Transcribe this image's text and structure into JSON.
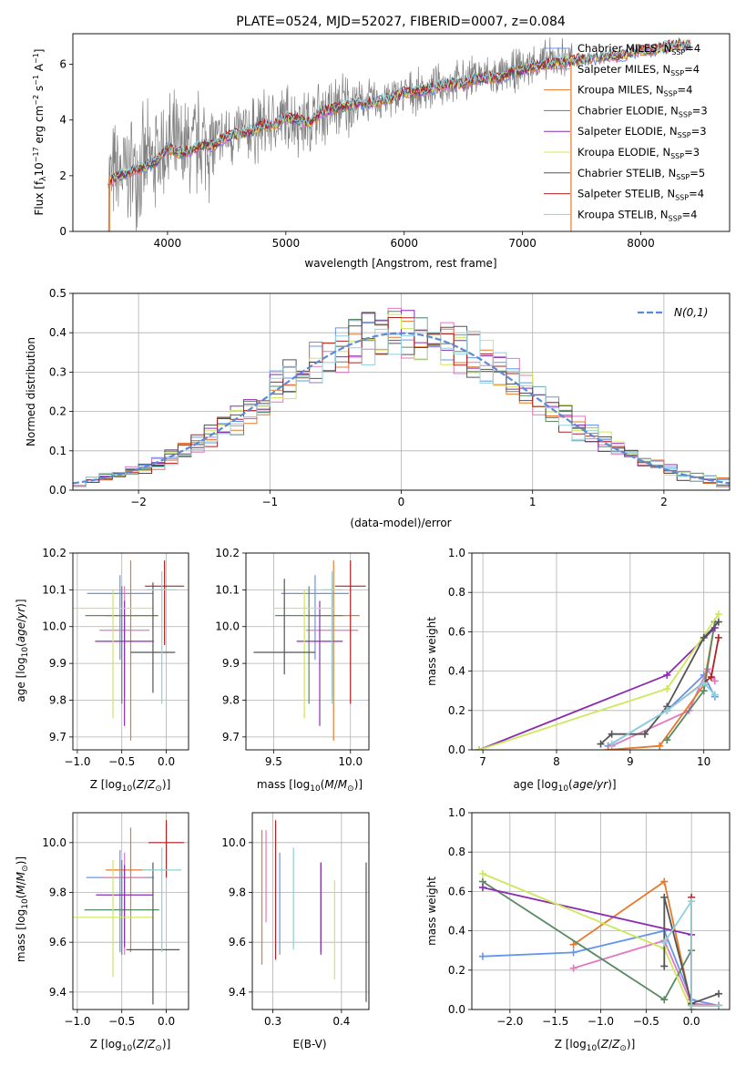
{
  "colors": {
    "Chabrier MILES": "#6495ed",
    "Salpeter MILES": "#e377c2",
    "Kroupa MILES": "#e8792a",
    "Chabrier ELODIE": "#5a8a64",
    "Salpeter ELODIE": "#8b2bb2",
    "Kroupa ELODIE": "#cde85a",
    "Chabrier STELIB": "#555555",
    "Salpeter STELIB": "#b22222",
    "Kroupa STELIB": "#8fd0db",
    "data": "#808080",
    "gauss": "#5b8bd6"
  },
  "chart_data": [
    {
      "id": "spectrum",
      "type": "line",
      "title": "PLATE=0524, MJD=52027, FIBERID=0007, z=0.084",
      "xlabel": "wavelength [Angstrom, rest frame]",
      "ylabel": "Flux [f",
      "xlim": [
        3200,
        8750
      ],
      "ylim": [
        0,
        7.1
      ],
      "xticks": [
        4000,
        5000,
        6000,
        7000,
        8000
      ],
      "yticks": [
        0,
        2,
        4,
        6
      ],
      "legend_position": "upper right",
      "legend": [
        "Chabrier MILES, N",
        "Salpeter MILES, N",
        "Kroupa MILES, N",
        "Chabrier ELODIE, N",
        "Salpeter ELODIE, N",
        "Kroupa ELODIE, N",
        "Chabrier STELIB, N",
        "Salpeter STELIB, N",
        "Kroupa STELIB, N"
      ],
      "legend_nssp": [
        "=4",
        "=4",
        "=4",
        "=3",
        "=3",
        "=3",
        "=5",
        "=4",
        "=4"
      ],
      "data_series": {
        "name": "data",
        "x": [
          3500,
          3600,
          3700,
          3800,
          3900,
          4000,
          4100,
          4200,
          4300,
          4400,
          4500,
          4600,
          4700,
          4800,
          4900,
          5000,
          5100,
          5200,
          5300,
          5400,
          5500,
          5600,
          5700,
          5800,
          5900,
          6000,
          6100,
          6200,
          6300,
          6400,
          6500,
          6600,
          6700,
          6800,
          6900,
          7000,
          7100,
          7200,
          7300,
          7400
        ],
        "y": [
          1.9,
          2.0,
          2.2,
          2.4,
          2.6,
          3.1,
          2.8,
          3.0,
          3.2,
          3.1,
          3.4,
          3.5,
          3.6,
          3.8,
          3.9,
          4.1,
          4.0,
          3.9,
          4.3,
          4.4,
          4.6,
          4.6,
          4.7,
          4.7,
          4.8,
          5.0,
          5.0,
          5.1,
          5.2,
          5.3,
          5.4,
          5.6,
          5.6,
          5.5,
          5.7,
          5.9,
          6.0,
          6.1,
          6.2,
          6.2
        ]
      },
      "model_series": {
        "name": "models",
        "x": [
          3500,
          3600,
          3700,
          3800,
          3900,
          4000,
          4100,
          4200,
          4300,
          4400,
          4500,
          4600,
          4700,
          4800,
          4900,
          5000,
          5100,
          5200,
          5300,
          5400,
          5500,
          5600,
          5700,
          5800,
          5900,
          6000,
          6100,
          6200,
          6300,
          6400,
          6500,
          6600,
          6700,
          6800,
          6900,
          7000,
          7100,
          7200,
          7300,
          7400,
          7500,
          7600,
          7700,
          7800,
          7900,
          8000,
          8100,
          8200,
          8300,
          8400
        ],
        "y": [
          1.8,
          2.0,
          2.2,
          2.3,
          2.5,
          3.0,
          2.8,
          2.9,
          3.1,
          3.1,
          3.4,
          3.5,
          3.6,
          3.8,
          3.8,
          4.1,
          4.0,
          3.9,
          4.3,
          4.4,
          4.5,
          4.6,
          4.6,
          4.7,
          4.8,
          5.0,
          5.0,
          5.1,
          5.2,
          5.3,
          5.3,
          5.5,
          5.5,
          5.5,
          5.7,
          5.8,
          5.9,
          6.0,
          6.1,
          6.1,
          6.2,
          6.2,
          6.3,
          6.3,
          6.4,
          6.5,
          6.5,
          6.6,
          6.7,
          6.7
        ]
      }
    },
    {
      "id": "residuals",
      "type": "histogram",
      "xlabel": "(data-model)/error",
      "ylabel": "Normed distribution",
      "xlim": [
        -2.5,
        2.5
      ],
      "ylim": [
        0,
        0.5
      ],
      "xticks": [
        -2,
        -1,
        0,
        1,
        2
      ],
      "yticks": [
        0.0,
        0.1,
        0.2,
        0.3,
        0.4,
        0.5
      ],
      "legend": [
        "N(0,1)"
      ],
      "legend_position": "upper right",
      "bin_width": 0.1,
      "hist_peak": [
        0.47,
        0.46,
        0.44,
        0.42,
        0.41,
        0.4,
        0.39,
        0.38,
        0.37,
        0.36
      ]
    },
    {
      "id": "age_vs_Z",
      "type": "errorbar",
      "xlabel": "Z [log",
      "ylabel": "age  [log",
      "xlim": [
        -1.05,
        0.25
      ],
      "ylim": [
        9.665,
        10.2
      ],
      "xticks": [
        -1.0,
        -0.5,
        0.0
      ],
      "yticks": [
        9.7,
        9.8,
        9.9,
        10.0,
        10.1,
        10.2
      ],
      "points": [
        {
          "model": "Chabrier MILES",
          "x": -0.52,
          "y": 10.09,
          "xerr": 0.37,
          "yerr": [
            0.18,
            0.05
          ]
        },
        {
          "model": "Salpeter MILES",
          "x": -0.47,
          "y": 9.99,
          "xerr": 0.28,
          "yerr": [
            0.18,
            0.12
          ]
        },
        {
          "model": "Kroupa MILES",
          "x": -0.4,
          "y": 10.03,
          "xerr": 0.29,
          "yerr": [
            0.34,
            0.15
          ]
        },
        {
          "model": "Chabrier ELODIE",
          "x": -0.5,
          "y": 10.03,
          "xerr": 0.41,
          "yerr": [
            0.24,
            0.08
          ]
        },
        {
          "model": "Salpeter ELODIE",
          "x": -0.47,
          "y": 9.96,
          "xerr": 0.33,
          "yerr": [
            0.23,
            0.11
          ]
        },
        {
          "model": "Kroupa ELODIE",
          "x": -0.6,
          "y": 10.05,
          "xerr": 0.46,
          "yerr": [
            0.3,
            0.05
          ]
        },
        {
          "model": "Chabrier STELIB",
          "x": -0.15,
          "y": 9.93,
          "xerr": 0.25,
          "yerr": [
            0.11,
            0.19
          ]
        },
        {
          "model": "Salpeter STELIB",
          "x": -0.02,
          "y": 10.11,
          "xerr": 0.22,
          "yerr": [
            0.16,
            0.07
          ]
        },
        {
          "model": "Kroupa STELIB",
          "x": -0.05,
          "y": 10.1,
          "xerr": 0.17,
          "yerr": [
            0.31,
            0.05
          ]
        }
      ]
    },
    {
      "id": "age_vs_mass",
      "type": "errorbar",
      "xlabel": "mass [log",
      "ylabel": "",
      "xlim": [
        9.32,
        10.12
      ],
      "ylim": [
        9.665,
        10.2
      ],
      "xticks": [
        9.5,
        10.0
      ],
      "yticks": [
        9.7,
        9.8,
        9.9,
        10.0,
        10.1,
        10.2
      ],
      "points": [
        {
          "model": "Chabrier MILES",
          "x": 9.77,
          "y": 10.09,
          "xerr": 0.22,
          "yerr": [
            0.18,
            0.05
          ]
        },
        {
          "model": "Salpeter MILES",
          "x": 9.88,
          "y": 9.99,
          "xerr": 0.17,
          "yerr": [
            0.18,
            0.12
          ]
        },
        {
          "model": "Kroupa MILES",
          "x": 9.89,
          "y": 10.03,
          "xerr": 0.17,
          "yerr": [
            0.34,
            0.15
          ]
        },
        {
          "model": "Chabrier ELODIE",
          "x": 9.73,
          "y": 10.03,
          "xerr": 0.22,
          "yerr": [
            0.24,
            0.08
          ]
        },
        {
          "model": "Salpeter ELODIE",
          "x": 9.8,
          "y": 9.96,
          "xerr": 0.15,
          "yerr": [
            0.23,
            0.11
          ]
        },
        {
          "model": "Kroupa ELODIE",
          "x": 9.7,
          "y": 10.05,
          "xerr": 0.2,
          "yerr": [
            0.3,
            0.05
          ]
        },
        {
          "model": "Chabrier STELIB",
          "x": 9.57,
          "y": 9.93,
          "xerr": 0.2,
          "yerr": [
            0.06,
            0.2
          ]
        },
        {
          "model": "Salpeter STELIB",
          "x": 10.0,
          "y": 10.11,
          "xerr": 0.1,
          "yerr": [
            0.32,
            0.07
          ]
        },
        {
          "model": "Kroupa STELIB",
          "x": 9.88,
          "y": 10.1,
          "xerr": 0.07,
          "yerr": [
            0.31,
            0.05
          ]
        }
      ]
    },
    {
      "id": "weight_vs_age",
      "type": "line",
      "xlabel": "age  [log",
      "ylabel": "mass weight",
      "xlim": [
        6.85,
        10.35
      ],
      "ylim": [
        0,
        1.0
      ],
      "xticks": [
        7,
        8,
        9,
        10
      ],
      "yticks": [
        0.0,
        0.2,
        0.4,
        0.6,
        0.8,
        1.0
      ],
      "series": [
        {
          "model": "Chabrier MILES",
          "x": [
            8.7,
            9.5,
            10.0,
            10.15
          ],
          "y": [
            0.02,
            0.2,
            0.38,
            0.27
          ]
        },
        {
          "model": "Salpeter MILES",
          "x": [
            8.75,
            9.8,
            10.05,
            10.15
          ],
          "y": [
            0.02,
            0.2,
            0.41,
            0.35
          ]
        },
        {
          "model": "Kroupa MILES",
          "x": [
            8.7,
            9.4,
            10.0,
            10.15
          ],
          "y": [
            0.0,
            0.02,
            0.33,
            0.65
          ]
        },
        {
          "model": "Chabrier ELODIE",
          "x": [
            9.5,
            10.0,
            10.15
          ],
          "y": [
            0.05,
            0.3,
            0.65
          ]
        },
        {
          "model": "Salpeter ELODIE",
          "x": [
            6.95,
            9.5,
            10.15
          ],
          "y": [
            0.0,
            0.38,
            0.62
          ]
        },
        {
          "model": "Kroupa ELODIE",
          "x": [
            6.95,
            9.5,
            10.2
          ],
          "y": [
            0.0,
            0.31,
            0.69
          ]
        },
        {
          "model": "Chabrier STELIB",
          "x": [
            8.6,
            8.75,
            9.2,
            9.5,
            10.0,
            10.2
          ],
          "y": [
            0.03,
            0.08,
            0.08,
            0.22,
            0.57,
            0.65
          ]
        },
        {
          "model": "Salpeter STELIB",
          "x": [
            9.5,
            10.1,
            10.2
          ],
          "y": [
            0.2,
            0.37,
            0.57
          ]
        },
        {
          "model": "Kroupa STELIB",
          "x": [
            8.75,
            9.5,
            10.0,
            10.15
          ],
          "y": [
            0.03,
            0.2,
            0.34,
            0.28
          ]
        }
      ]
    },
    {
      "id": "mass_vs_Z",
      "type": "errorbar",
      "xlabel": "Z [log",
      "ylabel": "mass [log",
      "xlim": [
        -1.05,
        0.25
      ],
      "ylim": [
        9.33,
        10.12
      ],
      "xticks": [
        -1.0,
        -0.5,
        0.0
      ],
      "yticks": [
        9.4,
        9.6,
        9.8,
        10.0
      ],
      "points": [
        {
          "model": "Chabrier MILES",
          "x": -0.52,
          "y": 9.86,
          "xerr": 0.38,
          "yerr": [
            0.3,
            0.11
          ]
        },
        {
          "model": "Salpeter MILES",
          "x": -0.47,
          "y": 9.86,
          "xerr": 0.25,
          "yerr": [
            0.31,
            0.1
          ]
        },
        {
          "model": "Kroupa MILES",
          "x": -0.4,
          "y": 9.89,
          "xerr": 0.28,
          "yerr": [
            0.33,
            0.17
          ]
        },
        {
          "model": "Chabrier ELODIE",
          "x": -0.5,
          "y": 9.73,
          "xerr": 0.42,
          "yerr": [
            0.18,
            0.2
          ]
        },
        {
          "model": "Salpeter ELODIE",
          "x": -0.47,
          "y": 9.79,
          "xerr": 0.32,
          "yerr": [
            0.21,
            0.12
          ]
        },
        {
          "model": "Kroupa ELODIE",
          "x": -0.6,
          "y": 9.7,
          "xerr": 0.45,
          "yerr": [
            0.24,
            0.23
          ]
        },
        {
          "model": "Chabrier STELIB",
          "x": -0.15,
          "y": 9.57,
          "xerr": 0.3,
          "yerr": [
            0.22,
            0.35
          ]
        },
        {
          "model": "Salpeter STELIB",
          "x": 0.0,
          "y": 10.0,
          "xerr": 0.2,
          "yerr": [
            0.14,
            0.09
          ]
        },
        {
          "model": "Kroupa STELIB",
          "x": -0.05,
          "y": 9.89,
          "xerr": 0.22,
          "yerr": [
            0.33,
            0.09
          ]
        }
      ]
    },
    {
      "id": "mass_vs_ebv",
      "type": "errorbar",
      "xlabel": "E(B-V)",
      "ylabel": "",
      "xlim": [
        0.27,
        0.44
      ],
      "ylim": [
        9.33,
        10.12
      ],
      "xticks": [
        0.3,
        0.4
      ],
      "yticks": [
        9.4,
        9.6,
        9.8,
        10.0
      ],
      "points": [
        {
          "model": "Chabrier MILES",
          "x": 0.31,
          "y": 9.8,
          "yerr": [
            0.25,
            0.16
          ]
        },
        {
          "model": "Salpeter MILES",
          "x": 0.29,
          "y": 9.85,
          "yerr": [
            0.17,
            0.2
          ]
        },
        {
          "model": "Kroupa MILES",
          "x": 0.284,
          "y": 9.8,
          "yerr": [
            0.29,
            0.25
          ]
        },
        {
          "model": "Chabrier ELODIE",
          "x": 0.37,
          "y": 9.76,
          "yerr": [
            0.2,
            0.16
          ]
        },
        {
          "model": "Salpeter ELODIE",
          "x": 0.37,
          "y": 9.75,
          "yerr": [
            0.2,
            0.17
          ]
        },
        {
          "model": "Kroupa ELODIE",
          "x": 0.39,
          "y": 9.65,
          "yerr": [
            0.2,
            0.2
          ]
        },
        {
          "model": "Chabrier STELIB",
          "x": 0.436,
          "y": 9.64,
          "yerr": [
            0.28,
            0.28
          ]
        },
        {
          "model": "Salpeter STELIB",
          "x": 0.304,
          "y": 9.82,
          "yerr": [
            0.29,
            0.27
          ]
        },
        {
          "model": "Kroupa STELIB",
          "x": 0.33,
          "y": 9.78,
          "yerr": [
            0.21,
            0.2
          ]
        }
      ]
    },
    {
      "id": "weight_vs_Z",
      "type": "line",
      "xlabel": "Z [log",
      "ylabel": "mass weight",
      "xlim": [
        -2.42,
        0.42
      ],
      "ylim": [
        0,
        1.0
      ],
      "xticks": [
        -2.0,
        -1.5,
        -1.0,
        -0.5,
        0.0
      ],
      "yticks": [
        0.0,
        0.2,
        0.4,
        0.6,
        0.8,
        1.0
      ],
      "series": [
        {
          "model": "Chabrier MILES",
          "x": [
            -2.3,
            -1.3,
            -0.3,
            0.0,
            0.3
          ],
          "y": [
            0.27,
            0.29,
            0.4,
            0.05,
            0.02
          ]
        },
        {
          "model": "Salpeter MILES",
          "x": [
            -1.3,
            -0.3,
            0.0,
            0.3
          ],
          "y": [
            0.21,
            0.35,
            0.03,
            0.02
          ]
        },
        {
          "model": "Kroupa MILES",
          "x": [
            -1.3,
            -0.3,
            0.0,
            0.3
          ],
          "y": [
            0.33,
            0.65,
            0.02,
            0.02
          ]
        },
        {
          "model": "Chabrier ELODIE",
          "x": [
            -2.3,
            -0.3,
            0.0
          ],
          "y": [
            0.65,
            0.05,
            0.3
          ]
        },
        {
          "model": "Salpeter ELODIE",
          "x": [
            -2.3,
            0.0,
            0.0
          ],
          "y": [
            0.62,
            0.38,
            0.0
          ]
        },
        {
          "model": "Kroupa ELODIE",
          "x": [
            -2.3,
            -0.3,
            0.0
          ],
          "y": [
            0.69,
            0.31,
            0.0
          ]
        },
        {
          "model": "Chabrier STELIB",
          "x": [
            -0.3,
            -0.3,
            0.0,
            0.3
          ],
          "y": [
            0.22,
            0.57,
            0.03,
            0.08
          ]
        },
        {
          "model": "Salpeter STELIB",
          "x": [
            0.0,
            0.0,
            0.3
          ],
          "y": [
            0.57,
            0.02,
            0.02
          ]
        },
        {
          "model": "Kroupa STELIB",
          "x": [
            -0.3,
            0.0,
            0.0,
            0.3
          ],
          "y": [
            0.34,
            0.55,
            0.02,
            0.02
          ]
        }
      ]
    }
  ]
}
